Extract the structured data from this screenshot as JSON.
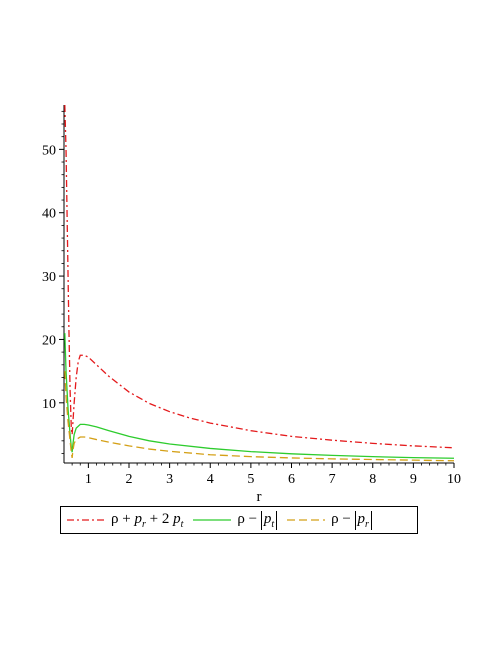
{
  "chart_data": {
    "type": "line",
    "xlabel": "r",
    "ylabel": "",
    "xlim": [
      0.4,
      10
    ],
    "ylim": [
      0.5,
      57
    ],
    "x_ticks": [
      1,
      2,
      3,
      4,
      5,
      6,
      7,
      8,
      9,
      10
    ],
    "y_ticks": [
      10,
      20,
      30,
      40,
      50
    ],
    "legend_position": "bottom",
    "grid": false,
    "series": [
      {
        "name": "ρ + p_r + 2 p_t",
        "color": "#e41a1c",
        "style": "dashdot",
        "x": [
          0.42,
          0.45,
          0.48,
          0.5,
          0.52,
          0.55,
          0.58,
          0.6,
          0.65,
          0.7,
          0.75,
          0.8,
          0.9,
          1.0,
          1.2,
          1.5,
          2,
          2.5,
          3,
          3.5,
          4,
          5,
          6,
          7,
          8,
          9,
          10
        ],
        "y": [
          57,
          50,
          38,
          30,
          22,
          12,
          6,
          5,
          10,
          14,
          16.5,
          17.5,
          17.5,
          17.2,
          16,
          14.2,
          11.7,
          9.9,
          8.6,
          7.6,
          6.8,
          5.6,
          4.7,
          4.1,
          3.6,
          3.2,
          2.9
        ]
      },
      {
        "name": "ρ − |p_t|",
        "color": "#2ecc2e",
        "style": "solid",
        "x": [
          0.42,
          0.45,
          0.5,
          0.55,
          0.58,
          0.6,
          0.62,
          0.65,
          0.7,
          0.8,
          0.9,
          1.0,
          1.2,
          1.5,
          2,
          2.5,
          3,
          4,
          5,
          6,
          7,
          8,
          9,
          10
        ],
        "y": [
          21,
          15,
          9,
          5,
          3,
          2.2,
          3.5,
          5,
          6,
          6.6,
          6.6,
          6.5,
          6.2,
          5.6,
          4.7,
          4.0,
          3.5,
          2.8,
          2.3,
          1.95,
          1.7,
          1.5,
          1.35,
          1.25
        ]
      },
      {
        "name": "ρ − |p_r|",
        "color": "#d4a017",
        "style": "dashed",
        "x": [
          0.42,
          0.45,
          0.5,
          0.55,
          0.58,
          0.6,
          0.62,
          0.65,
          0.7,
          0.8,
          0.9,
          1.0,
          1.2,
          1.5,
          2,
          2.5,
          3,
          4,
          5,
          6,
          7,
          8,
          9,
          10
        ],
        "y": [
          15,
          11,
          7,
          4,
          2.2,
          1.3,
          2.5,
          3.6,
          4.2,
          4.6,
          4.6,
          4.5,
          4.2,
          3.8,
          3.2,
          2.7,
          2.35,
          1.8,
          1.5,
          1.3,
          1.15,
          1.05,
          0.95,
          0.85
        ]
      }
    ]
  },
  "legend": {
    "items": [
      {
        "label_main": "ρ + ",
        "sub1_base": "p",
        "sub1": "r",
        "mid": " + 2 ",
        "sub2_base": "p",
        "sub2": "t"
      },
      {
        "label_main": "ρ − ",
        "sub1_base": "p",
        "sub1": "t"
      },
      {
        "label_main": "ρ − ",
        "sub1_base": "p",
        "sub1": "r"
      }
    ]
  }
}
